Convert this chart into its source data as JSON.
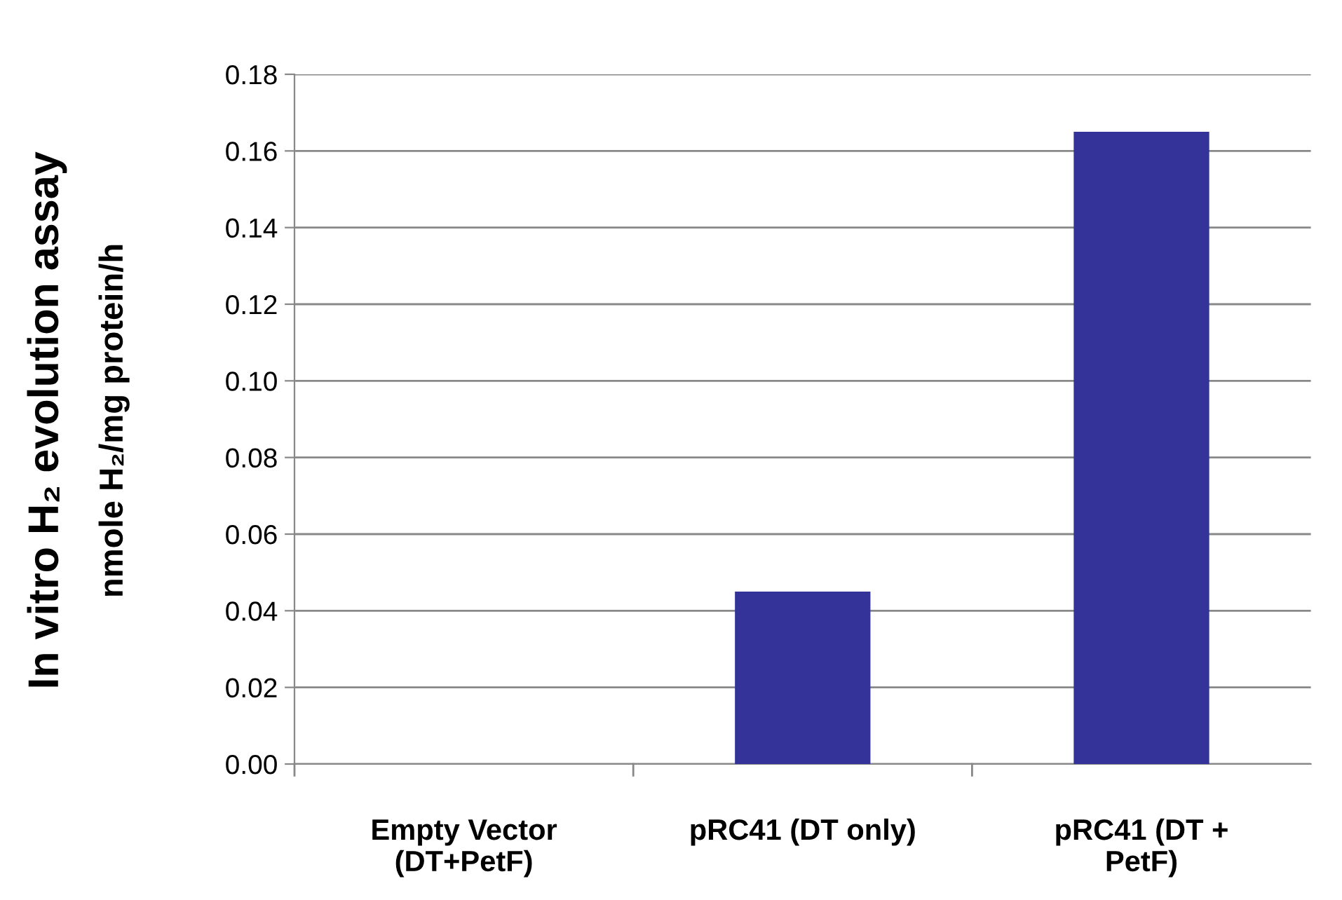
{
  "chart_data": {
    "type": "bar",
    "ylabel": "In vitro H₂ evolution assay\nnmole H₂/mg protein/h",
    "categories": [
      "Empty Vector\n(DT+PetF)",
      "pRC41 (DT only)",
      "pRC41 (DT +\nPetF)"
    ],
    "values": [
      0,
      0.045,
      0.165
    ],
    "color": "#333399",
    "ylim": [
      0,
      0.18
    ],
    "yticks": [
      {
        "value": 0,
        "label": "0.00"
      },
      {
        "value": 0.02,
        "label": "0.02"
      },
      {
        "value": 0.04,
        "label": "0.04"
      },
      {
        "value": 0.06,
        "label": "0.06"
      },
      {
        "value": 0.08,
        "label": "0.08"
      },
      {
        "value": 0.1,
        "label": "0.10"
      },
      {
        "value": 0.12,
        "label": "0.12"
      },
      {
        "value": 0.14,
        "label": "0.14"
      },
      {
        "value": 0.16,
        "label": "0.16"
      },
      {
        "value": 0.18,
        "label": "0.18"
      }
    ],
    "grid": "y",
    "legend": false
  }
}
